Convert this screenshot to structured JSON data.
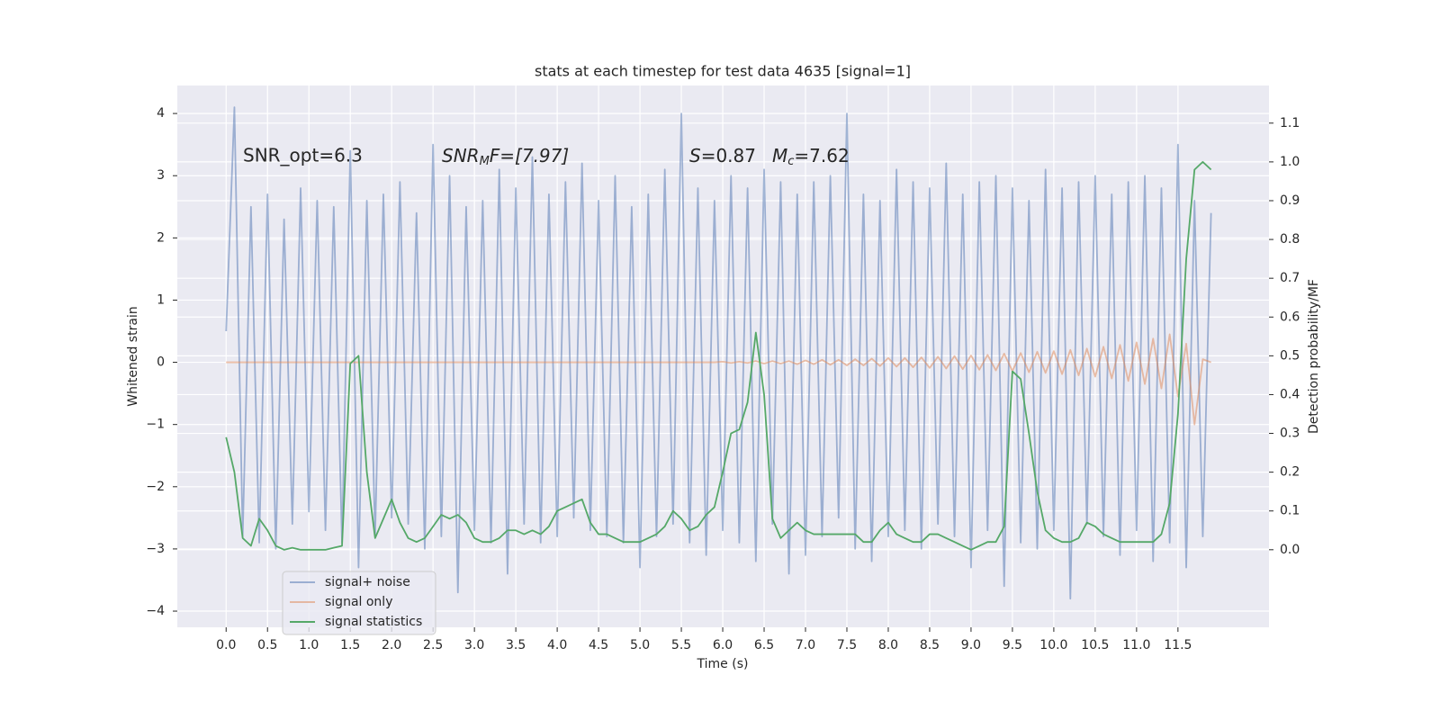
{
  "chart_data": {
    "type": "line",
    "title": "stats at each timestep for test data 4635 [signal=1]",
    "x_label": "Time (s)",
    "y_label": "Whitened strain",
    "y2_label": "Detection probability/MF",
    "grid": true,
    "legend": "lower left",
    "xlim": [
      -0.59,
      12.6
    ],
    "ylim": [
      -4.26,
      4.45
    ],
    "y2lim": [
      -0.2,
      1.197
    ],
    "xticks": [
      {
        "value": 0,
        "label": "0.0"
      },
      {
        "value": 0.5,
        "label": "0.5"
      },
      {
        "value": 1,
        "label": "1.0"
      },
      {
        "value": 1.5,
        "label": "1.5"
      },
      {
        "value": 2,
        "label": "2.0"
      },
      {
        "value": 2.5,
        "label": "2.5"
      },
      {
        "value": 3,
        "label": "3.0"
      },
      {
        "value": 3.5,
        "label": "3.5"
      },
      {
        "value": 4,
        "label": "4.0"
      },
      {
        "value": 4.5,
        "label": "4.5"
      },
      {
        "value": 5,
        "label": "5.0"
      },
      {
        "value": 5.5,
        "label": "5.5"
      },
      {
        "value": 6,
        "label": "6.0"
      },
      {
        "value": 6.5,
        "label": "6.5"
      },
      {
        "value": 7,
        "label": "7.0"
      },
      {
        "value": 7.5,
        "label": "7.5"
      },
      {
        "value": 8,
        "label": "8.0"
      },
      {
        "value": 8.5,
        "label": "8.5"
      },
      {
        "value": 9,
        "label": "9.0"
      },
      {
        "value": 9.5,
        "label": "9.5"
      },
      {
        "value": 10,
        "label": "10.0"
      },
      {
        "value": 10.5,
        "label": "10.5"
      },
      {
        "value": 11,
        "label": "11.0"
      },
      {
        "value": 11.5,
        "label": "11.5"
      }
    ],
    "yticks": [
      {
        "value": -4,
        "label": "−4"
      },
      {
        "value": -3,
        "label": "−3"
      },
      {
        "value": -2,
        "label": "−2"
      },
      {
        "value": -1,
        "label": "−1"
      },
      0,
      1,
      2,
      3,
      4
    ],
    "y2ticks": [
      {
        "value": 0,
        "label": "0.0"
      },
      {
        "value": 0.1,
        "label": "0.1"
      },
      {
        "value": 0.2,
        "label": "0.2"
      },
      {
        "value": 0.3,
        "label": "0.3"
      },
      {
        "value": 0.4,
        "label": "0.4"
      },
      {
        "value": 0.5,
        "label": "0.5"
      },
      {
        "value": 0.6,
        "label": "0.6"
      },
      {
        "value": 0.7,
        "label": "0.7"
      },
      {
        "value": 0.8,
        "label": "0.8"
      },
      {
        "value": 0.9,
        "label": "0.9"
      },
      {
        "value": 1,
        "label": "1.0"
      },
      {
        "value": 1.1,
        "label": "1.1"
      }
    ],
    "annotations": [
      {
        "text": "SNR_opt=6.3"
      },
      {
        "parts": [
          "SNR",
          "M",
          "F=[7.97]"
        ]
      },
      {
        "parts": [
          "S",
          "=0.87",
          "M",
          "c",
          "=7.62"
        ]
      }
    ],
    "x": [
      0,
      0.1,
      0.2,
      0.3,
      0.4,
      0.5,
      0.6,
      0.7,
      0.8,
      0.9,
      1,
      1.1,
      1.2,
      1.3,
      1.4,
      1.5,
      1.6,
      1.7,
      1.8,
      1.9,
      2,
      2.1,
      2.2,
      2.3,
      2.4,
      2.5,
      2.6,
      2.7,
      2.8,
      2.9,
      3,
      3.1,
      3.2,
      3.3,
      3.4,
      3.5,
      3.6,
      3.7,
      3.8,
      3.9,
      4,
      4.1,
      4.2,
      4.3,
      4.4,
      4.5,
      4.6,
      4.7,
      4.8,
      4.9,
      5,
      5.1,
      5.2,
      5.3,
      5.4,
      5.5,
      5.6,
      5.7,
      5.8,
      5.9,
      6,
      6.1,
      6.2,
      6.3,
      6.4,
      6.5,
      6.6,
      6.7,
      6.8,
      6.9,
      7,
      7.1,
      7.2,
      7.3,
      7.4,
      7.5,
      7.6,
      7.7,
      7.8,
      7.9,
      8,
      8.1,
      8.2,
      8.3,
      8.4,
      8.5,
      8.6,
      8.7,
      8.8,
      8.9,
      9,
      9.1,
      9.2,
      9.3,
      9.4,
      9.5,
      9.6,
      9.7,
      9.8,
      9.9,
      10,
      10.1,
      10.2,
      10.3,
      10.4,
      10.5,
      10.6,
      10.7,
      10.8,
      10.9,
      11,
      11.1,
      11.2,
      11.3,
      11.4,
      11.5,
      11.6,
      11.7,
      11.8,
      11.9
    ],
    "series": [
      {
        "name": "signal+ noise",
        "color": "#4c72b0",
        "alpha": 0.5,
        "axis": "y",
        "values": [
          0.5,
          4.1,
          -2.8,
          2.5,
          -2.9,
          2.7,
          -3.0,
          2.3,
          -2.6,
          2.8,
          -2.4,
          2.6,
          -2.7,
          2.5,
          -2.9,
          3.4,
          -3.3,
          2.6,
          -2.8,
          2.7,
          -2.5,
          2.9,
          -2.6,
          2.4,
          -3.0,
          3.5,
          -2.8,
          3.0,
          -3.7,
          2.5,
          -2.7,
          2.6,
          -2.9,
          3.1,
          -3.4,
          2.8,
          -2.6,
          3.3,
          -2.9,
          2.7,
          -2.8,
          2.9,
          -2.5,
          3.2,
          -2.7,
          2.6,
          -2.8,
          3.0,
          -2.9,
          2.5,
          -3.3,
          2.7,
          -2.8,
          3.1,
          -2.6,
          4.0,
          -2.9,
          2.8,
          -3.1,
          2.6,
          -2.7,
          3.0,
          -2.9,
          2.8,
          -3.2,
          3.1,
          -2.6,
          2.9,
          -3.4,
          2.7,
          -3.1,
          2.9,
          -2.8,
          3.0,
          -2.5,
          4.0,
          -3.0,
          2.7,
          -3.2,
          2.6,
          -2.8,
          3.1,
          -2.7,
          2.9,
          -3.0,
          2.8,
          -2.6,
          3.2,
          -2.8,
          2.7,
          -3.3,
          2.9,
          -2.7,
          3.0,
          -3.6,
          2.8,
          -2.9,
          2.6,
          -3.0,
          3.1,
          -2.7,
          2.8,
          -3.8,
          2.9,
          -2.6,
          3.0,
          -2.8,
          2.7,
          -3.1,
          2.9,
          -2.7,
          3.0,
          -3.2,
          2.8,
          -2.9,
          3.5,
          -3.3,
          2.6,
          -2.8,
          2.4
        ]
      },
      {
        "name": "signal only",
        "color": "#dd8452",
        "alpha": 0.5,
        "axis": "y",
        "values": [
          0,
          0,
          0,
          0,
          0,
          0,
          0,
          0,
          0,
          0,
          0,
          0,
          0,
          0,
          0,
          0,
          0,
          0,
          0,
          0,
          0,
          0,
          0,
          0,
          0,
          0,
          0,
          0,
          0,
          0,
          0,
          0,
          0,
          0,
          0,
          0,
          0,
          0,
          0,
          0,
          0,
          0,
          0,
          0,
          0,
          0,
          0,
          0,
          0,
          0,
          0,
          0,
          0,
          0,
          0,
          0,
          0,
          0,
          0,
          0,
          0.01,
          -0.01,
          0.01,
          -0.01,
          0.02,
          -0.02,
          0.02,
          -0.02,
          0.02,
          -0.03,
          0.03,
          -0.03,
          0.04,
          -0.04,
          0.04,
          -0.05,
          0.05,
          -0.05,
          0.06,
          -0.06,
          0.07,
          -0.07,
          0.07,
          -0.08,
          0.08,
          -0.09,
          0.09,
          -0.1,
          0.1,
          -0.11,
          0.11,
          -0.12,
          0.12,
          -0.13,
          0.14,
          -0.14,
          0.15,
          -0.16,
          0.17,
          -0.17,
          0.18,
          -0.19,
          0.2,
          -0.21,
          0.22,
          -0.23,
          0.25,
          -0.26,
          0.28,
          -0.3,
          0.32,
          -0.35,
          0.38,
          -0.42,
          0.45,
          -0.55,
          0.3,
          -1.0,
          0.05,
          0
        ]
      },
      {
        "name": "signal statistics",
        "color": "#55a868",
        "alpha": 1,
        "axis": "y2",
        "values": [
          0.29,
          0.2,
          0.03,
          0.01,
          0.08,
          0.05,
          0.01,
          0,
          0.005,
          0,
          0,
          0,
          0,
          0.005,
          0.01,
          0.48,
          0.5,
          0.2,
          0.03,
          0.08,
          0.13,
          0.07,
          0.03,
          0.02,
          0.03,
          0.06,
          0.09,
          0.08,
          0.09,
          0.07,
          0.03,
          0.02,
          0.02,
          0.03,
          0.05,
          0.05,
          0.04,
          0.05,
          0.04,
          0.06,
          0.1,
          0.11,
          0.12,
          0.13,
          0.07,
          0.04,
          0.04,
          0.03,
          0.02,
          0.02,
          0.02,
          0.03,
          0.04,
          0.06,
          0.1,
          0.08,
          0.05,
          0.06,
          0.09,
          0.11,
          0.2,
          0.3,
          0.31,
          0.38,
          0.56,
          0.4,
          0.08,
          0.03,
          0.05,
          0.07,
          0.05,
          0.04,
          0.04,
          0.04,
          0.04,
          0.04,
          0.04,
          0.02,
          0.02,
          0.05,
          0.07,
          0.04,
          0.03,
          0.02,
          0.02,
          0.04,
          0.04,
          0.03,
          0.02,
          0.01,
          0,
          0.01,
          0.02,
          0.02,
          0.06,
          0.46,
          0.44,
          0.3,
          0.15,
          0.05,
          0.03,
          0.02,
          0.02,
          0.03,
          0.07,
          0.06,
          0.04,
          0.03,
          0.02,
          0.02,
          0.02,
          0.02,
          0.02,
          0.04,
          0.12,
          0.35,
          0.75,
          0.98,
          1.0,
          0.98
        ]
      }
    ]
  }
}
